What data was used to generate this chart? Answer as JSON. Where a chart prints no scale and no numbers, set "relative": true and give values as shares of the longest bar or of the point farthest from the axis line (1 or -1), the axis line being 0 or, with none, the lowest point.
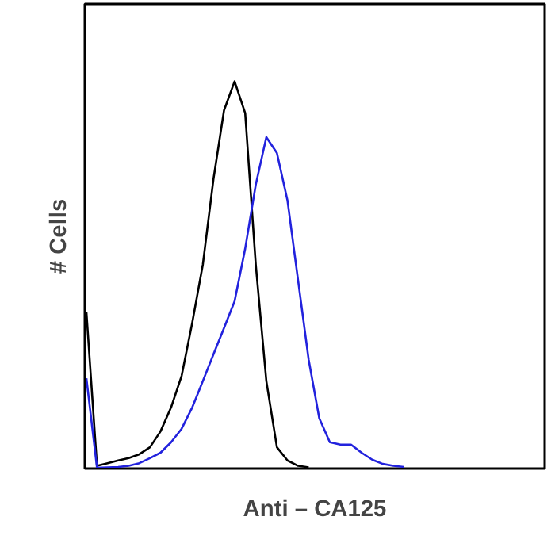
{
  "chart_data": {
    "type": "line",
    "relative": true,
    "xlabel": "Anti – CA125",
    "ylabel": "# Cells",
    "categories": [
      null,
      null,
      null,
      null,
      null,
      null,
      null,
      null,
      null,
      null,
      null,
      null,
      null,
      null,
      null,
      null,
      null,
      null,
      null,
      null,
      null,
      null,
      null,
      null,
      null,
      null,
      null,
      null,
      null,
      null,
      null
    ],
    "series": [
      {
        "color": "#000000",
        "values": [
          0.404,
          0.007,
          0.014,
          0.021,
          0.027,
          0.037,
          0.055,
          0.096,
          0.158,
          0.24,
          0.377,
          0.527,
          0.747,
          0.925,
          1.0,
          0.918,
          0.527,
          0.226,
          0.055,
          0.021,
          0.007,
          0.003,
          null,
          null,
          null,
          null,
          null,
          null,
          null,
          null,
          null
        ]
      },
      {
        "color": "#2222dd",
        "values": [
          0.233,
          0.002,
          0.003,
          0.004,
          0.007,
          0.014,
          0.027,
          0.041,
          0.068,
          0.103,
          0.158,
          0.226,
          0.295,
          0.363,
          0.432,
          0.568,
          0.733,
          0.856,
          0.815,
          0.692,
          0.486,
          0.281,
          0.13,
          0.068,
          0.062,
          0.062,
          0.041,
          0.023,
          0.012,
          0.007,
          0.004
        ]
      }
    ],
    "grid": false
  }
}
